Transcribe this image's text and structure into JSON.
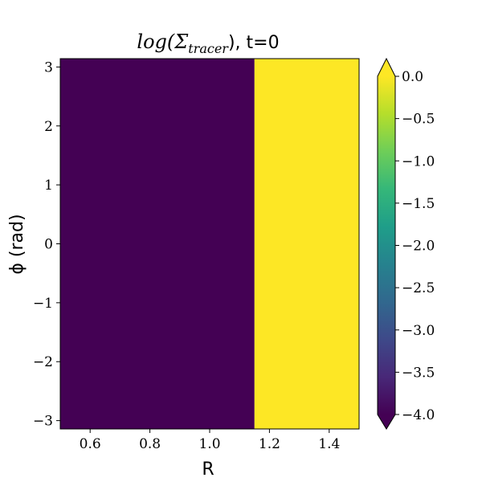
{
  "chart_data": {
    "type": "heatmap",
    "title_main": "log(Σ",
    "title_sub": "tracer",
    "title_tail": "), t=0",
    "xlabel": "R",
    "ylabel": "ϕ (rad)",
    "xlim": [
      0.5,
      1.5
    ],
    "ylim": [
      -3.14159,
      3.14159
    ],
    "xticks": [
      0.6,
      0.8,
      1.0,
      1.2,
      1.4
    ],
    "xtick_labels": [
      "0.6",
      "0.8",
      "1.0",
      "1.2",
      "1.4"
    ],
    "yticks": [
      -3,
      -2,
      -1,
      0,
      1,
      2,
      3
    ],
    "ytick_labels": [
      "−3",
      "−2",
      "−1",
      "0",
      "1",
      "2",
      "3"
    ],
    "regions": [
      {
        "r_from": 0.5,
        "r_to": 1.15,
        "value": -4.0,
        "color": "#440154"
      },
      {
        "r_from": 1.15,
        "r_to": 1.5,
        "value": 0.0,
        "color": "#fde725"
      }
    ],
    "colorbar": {
      "min": -4.0,
      "max": 0.0,
      "extend": "both",
      "ticks": [
        0.0,
        -0.5,
        -1.0,
        -1.5,
        -2.0,
        -2.5,
        -3.0,
        -3.5,
        -4.0
      ],
      "tick_labels": [
        "0.0",
        "−0.5",
        "−1.0",
        "−1.5",
        "−2.0",
        "−2.5",
        "−3.0",
        "−3.5",
        "−4.0"
      ],
      "colormap": "viridis",
      "stops": [
        "#440154",
        "#482878",
        "#3e4989",
        "#31688e",
        "#26828e",
        "#1f9e89",
        "#35b779",
        "#6ece58",
        "#b5de2b",
        "#fde725"
      ]
    }
  }
}
